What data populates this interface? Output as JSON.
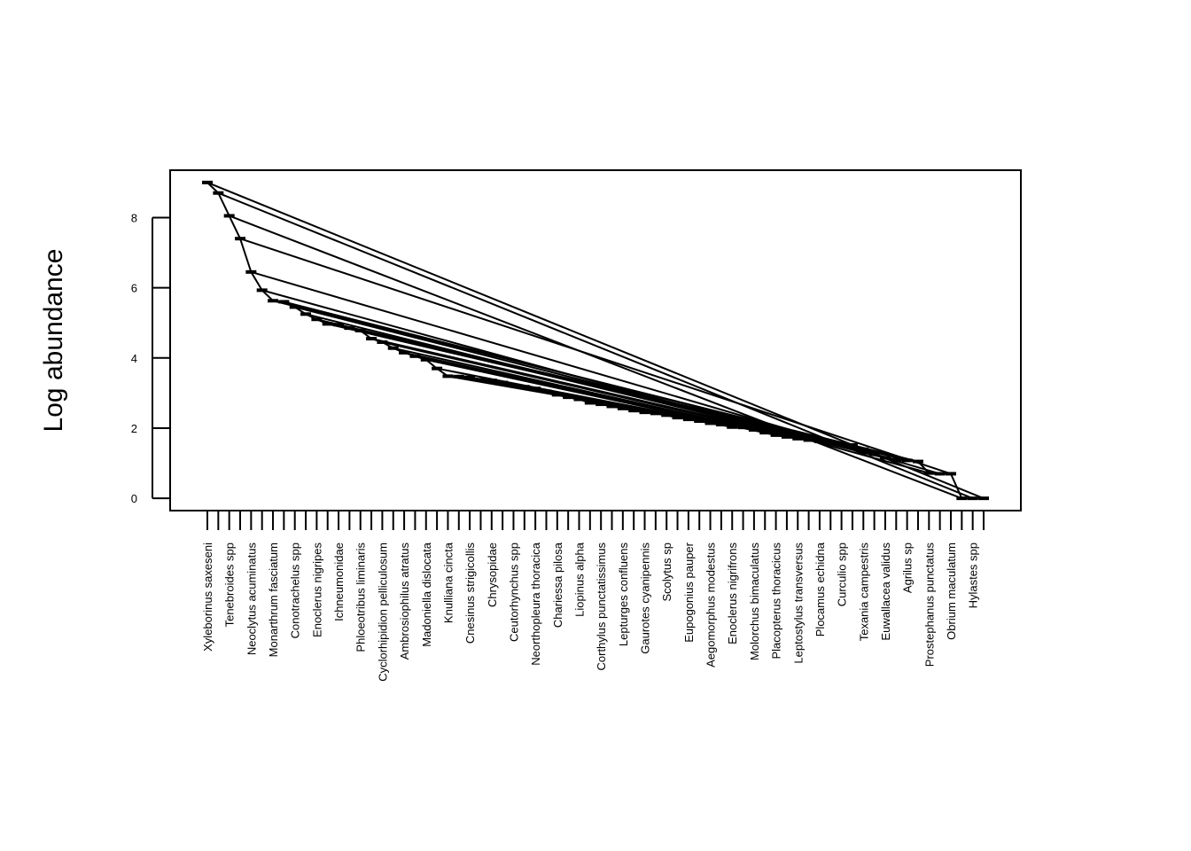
{
  "chart_data": {
    "type": "line",
    "title": "",
    "xlabel": "",
    "ylabel": "Log abundance",
    "ylim": [
      -0.35,
      9.35
    ],
    "yticks": [
      0,
      2,
      4,
      6,
      8
    ],
    "grid": false,
    "legend": "none",
    "line_color": "#000000",
    "categories": [
      "Xyleborinus saxeseni",
      "",
      "Tenebroides spp",
      "",
      "Neoclytus acuminatus",
      "",
      "Monarthrum fasciatum",
      "",
      "Conotrachelus spp",
      "",
      "Enoclerus nigripes",
      "",
      "Ichneumonidae",
      "",
      "Phloeotribus liminaris",
      "",
      "Cyclorhipidion pelliculosum",
      "",
      "Ambrosiophilus atratus",
      "",
      "Madoniella dislocata",
      "",
      "Knulliana cincta",
      "",
      "Cnesinus strigicollis",
      "",
      "Chrysopidae",
      "",
      "Ceutorhynchus spp",
      "",
      "Neorthopleura thoracica",
      "",
      "Chariessa pilosa",
      "",
      "Liopinus alpha",
      "",
      "Corthylus punctatissimus",
      "",
      "Lepturges confluens",
      "",
      "Gaurotes cyanipennis",
      "",
      "Scolytus sp",
      "",
      "Eupogonius pauper",
      "",
      "Aegomorphus modestus",
      "",
      "Enoclerus nigrifrons",
      "",
      "Molorchus bimaculatus",
      "",
      "Placopterus thoracicus",
      "",
      "Leptostylus transversus",
      "",
      "Plocamus echidna",
      "",
      "Curculio spp",
      "",
      "Texania campestris",
      "",
      "Euwallacea validus",
      "",
      "Agrilus sp",
      "",
      "Prostephanus punctatus",
      "",
      "Obrium maculatum",
      "",
      "Hylastes spp",
      ""
    ],
    "values": [
      9.0,
      8.7,
      8.05,
      7.4,
      6.45,
      5.93,
      5.63,
      5.6,
      5.45,
      5.25,
      5.1,
      4.97,
      4.95,
      4.85,
      4.78,
      4.55,
      4.45,
      4.28,
      4.15,
      4.05,
      3.95,
      3.7,
      3.48,
      3.47,
      3.45,
      3.38,
      3.36,
      3.3,
      3.22,
      3.18,
      3.13,
      3.05,
      2.95,
      2.88,
      2.82,
      2.72,
      2.68,
      2.62,
      2.56,
      2.5,
      2.45,
      2.42,
      2.37,
      2.3,
      2.25,
      2.2,
      2.14,
      2.1,
      2.03,
      2.02,
      1.95,
      1.87,
      1.8,
      1.75,
      1.7,
      1.66,
      1.62,
      1.58,
      1.55,
      1.52,
      1.4,
      1.25,
      1.15,
      1.1,
      1.08,
      1.05,
      0.72,
      0.7,
      0.7,
      0.0,
      0.0,
      0.0
    ]
  }
}
